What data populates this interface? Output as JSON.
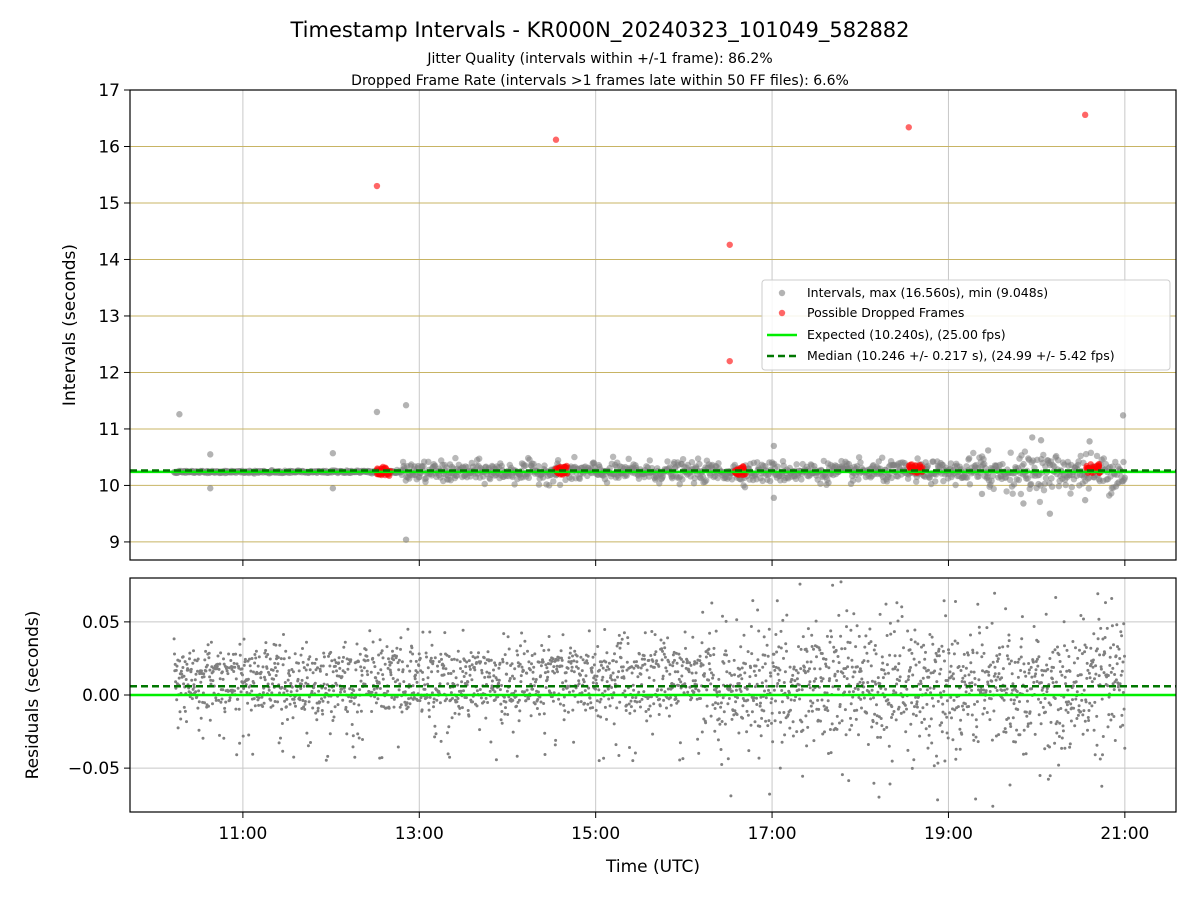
{
  "figure": {
    "title": "Timestamp Intervals - KR000N_20240323_101049_582882",
    "subtitle_1": "Jitter Quality (intervals within +/-1 frame): 86.2%",
    "subtitle_2": "Dropped Frame Rate (intervals >1 frames late within 50 FF files): 6.6%"
  },
  "colors": {
    "intervals": "#808080",
    "dropped": "#ff0000",
    "expected": "#00ee00",
    "median": "#007700",
    "hgrid_top": "#c8b464",
    "grid": "#c8c8c8"
  },
  "chart_data": [
    {
      "type": "scatter",
      "ylabel": "Intervals (seconds)",
      "xlim": [
        9.72,
        21.58
      ],
      "ylim": [
        8.68,
        17.0
      ],
      "yticks": [
        9,
        10,
        11,
        12,
        13,
        14,
        15,
        16,
        17
      ],
      "grid": true,
      "legend_position": "center-right",
      "legend": {
        "intervals": "Intervals, max (16.560s), min (9.048s)",
        "dropped": "Possible Dropped Frames",
        "expected": "Expected (10.240s), (25.00 fps)",
        "median": "Median (10.246 +/- 0.217 s), (24.99 +/- 5.42 fps)"
      },
      "expected_value": 10.24,
      "median_value": 10.246,
      "interval_outliers": [
        {
          "x": 10.28,
          "y": 11.26
        },
        {
          "x": 10.63,
          "y": 10.55
        },
        {
          "x": 10.63,
          "y": 9.95
        },
        {
          "x": 12.02,
          "y": 10.57
        },
        {
          "x": 12.02,
          "y": 9.95
        },
        {
          "x": 12.52,
          "y": 11.3
        },
        {
          "x": 12.85,
          "y": 11.42
        },
        {
          "x": 12.85,
          "y": 9.04
        },
        {
          "x": 16.52,
          "y": 10.25
        },
        {
          "x": 17.02,
          "y": 10.7
        },
        {
          "x": 17.02,
          "y": 9.78
        },
        {
          "x": 20.98,
          "y": 11.24
        },
        {
          "x": 20.15,
          "y": 9.5
        },
        {
          "x": 19.95,
          "y": 10.85
        },
        {
          "x": 19.85,
          "y": 9.68
        },
        {
          "x": 20.55,
          "y": 9.74
        },
        {
          "x": 20.6,
          "y": 10.78
        },
        {
          "x": 19.45,
          "y": 10.62
        },
        {
          "x": 19.38,
          "y": 9.85
        },
        {
          "x": 20.05,
          "y": 10.8
        }
      ],
      "dropped_frames": [
        {
          "x": 12.52,
          "y": 15.3
        },
        {
          "x": 14.55,
          "y": 16.12
        },
        {
          "x": 16.52,
          "y": 14.26
        },
        {
          "x": 16.52,
          "y": 12.2
        },
        {
          "x": 18.55,
          "y": 16.34
        },
        {
          "x": 20.55,
          "y": 16.56
        }
      ],
      "dropped_clusters": [
        {
          "x": 12.6,
          "y": 10.25
        },
        {
          "x": 14.62,
          "y": 10.27
        },
        {
          "x": 16.62,
          "y": 10.26
        },
        {
          "x": 18.63,
          "y": 10.3
        },
        {
          "x": 20.64,
          "y": 10.3
        }
      ]
    },
    {
      "type": "scatter",
      "ylabel": "Residuals (seconds)",
      "xlabel": "Time (UTC)",
      "xlim": [
        9.72,
        21.58
      ],
      "ylim": [
        -0.08,
        0.08
      ],
      "yticks": [
        -0.05,
        0.0,
        0.05
      ],
      "ytick_labels": [
        "−0.05",
        "0.00",
        "0.05"
      ],
      "xticks": [
        11,
        13,
        15,
        17,
        19,
        21
      ],
      "xtick_labels": [
        "11:00",
        "13:00",
        "15:00",
        "17:00",
        "19:00",
        "21:00"
      ],
      "grid": true,
      "expected_value": 0.0,
      "median_value": 0.006
    }
  ]
}
